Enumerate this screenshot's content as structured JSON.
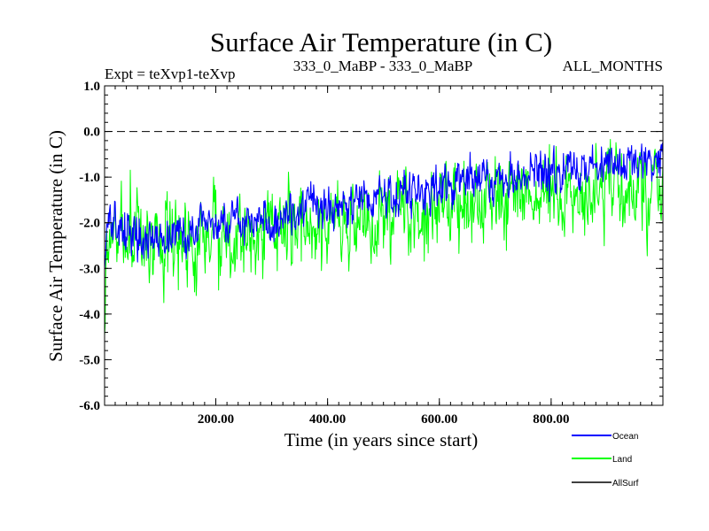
{
  "chart_data": {
    "type": "line",
    "title": "Surface Air Temperature (in C)",
    "subtitle_left": "Expt = teXvp1-teXvp",
    "subtitle_center": "333_0_MaBP - 333_0_MaBP",
    "subtitle_right": "ALL_MONTHS",
    "xlabel": "Time (in years since start)",
    "ylabel": "Surface Air Temperature (in C)",
    "xlim": [
      1,
      1000
    ],
    "ylim": [
      -6.0,
      1.0
    ],
    "x_ticks": [
      200,
      400,
      600,
      800
    ],
    "x_tick_labels": [
      "200.00",
      "400.00",
      "600.00",
      "800.00"
    ],
    "y_ticks": [
      1.0,
      0.0,
      -1.0,
      -2.0,
      -3.0,
      -4.0,
      -5.0,
      -6.0
    ],
    "y_tick_labels": [
      "1.0",
      "0.0",
      "-1.0",
      "-2.0",
      "-3.0",
      "-4.0",
      "-5.0",
      "-6.0"
    ],
    "reference_line": 0.0,
    "grid": false,
    "legend_position": "bottom-right, outside plot",
    "series": [
      {
        "name": "Land",
        "color": "#00ff00",
        "trend_x": [
          1,
          5,
          15,
          50,
          100,
          200,
          300,
          400,
          500,
          600,
          700,
          800,
          900,
          1000
        ],
        "trend_y": [
          -4.7,
          -2.4,
          -2.3,
          -2.3,
          -2.4,
          -2.3,
          -2.1,
          -2.0,
          -1.9,
          -1.6,
          -1.5,
          -1.4,
          -1.3,
          -1.2
        ],
        "spread": 0.9,
        "noise_seed": 7
      },
      {
        "name": "Ocean",
        "color": "#0000ff",
        "trend_x": [
          1,
          5,
          20,
          50,
          100,
          200,
          300,
          400,
          500,
          600,
          700,
          800,
          900,
          1000
        ],
        "trend_y": [
          -3.0,
          -2.0,
          -2.15,
          -2.3,
          -2.3,
          -2.1,
          -1.9,
          -1.65,
          -1.45,
          -1.2,
          -1.0,
          -0.85,
          -0.7,
          -0.6
        ],
        "spread": 0.45,
        "noise_seed": 13
      },
      {
        "name": "AllSurf",
        "color": "#000000",
        "trend_x": [],
        "trend_y": [],
        "spread": 0,
        "noise_seed": 0
      }
    ]
  }
}
